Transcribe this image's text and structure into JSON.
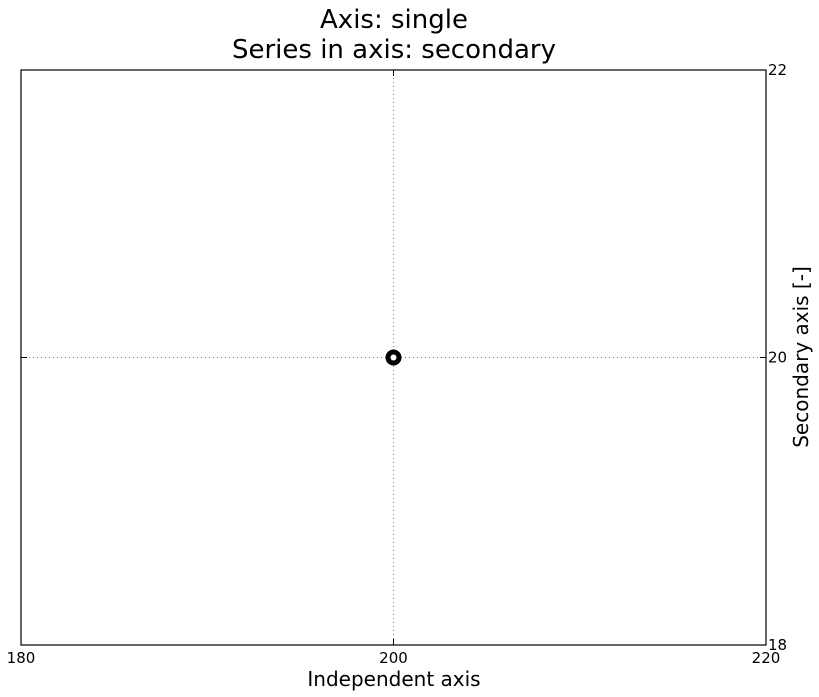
{
  "chart_data": {
    "type": "scatter",
    "title": [
      "Axis: single",
      "Series in axis: secondary"
    ],
    "xlabel": "Independent axis",
    "ylabel": "Secondary axis [-]",
    "xlim": [
      180,
      220
    ],
    "ylim": [
      18,
      22
    ],
    "x_ticks": [
      180,
      200,
      220
    ],
    "y_ticks": [
      18,
      20,
      22
    ],
    "y_axis_side": "right",
    "grid": true,
    "series": [
      {
        "x": [
          200
        ],
        "y": [
          20
        ],
        "marker": "circle",
        "color": "#000000"
      }
    ]
  }
}
